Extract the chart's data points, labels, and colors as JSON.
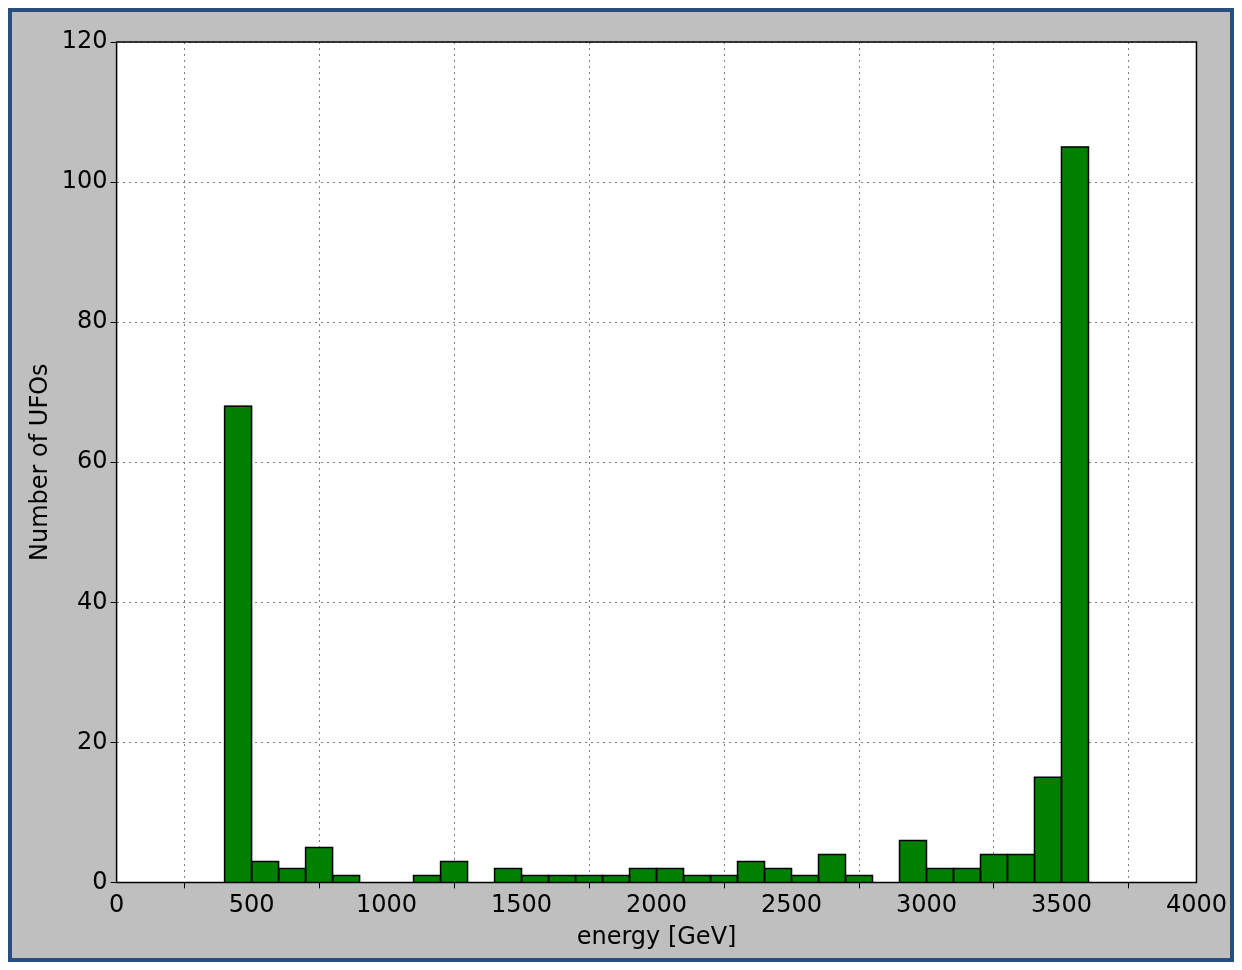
{
  "chart_data": {
    "type": "histogram",
    "xlabel": "energy [GeV]",
    "ylabel": "Number of UFOs",
    "bins": [
      400,
      500,
      600,
      700,
      800,
      900,
      1000,
      1100,
      1200,
      1300,
      1400,
      1500,
      1600,
      1700,
      1800,
      1900,
      2000,
      2100,
      2200,
      2300,
      2400,
      2500,
      2600,
      2700,
      2800,
      2900,
      3000,
      3100,
      3200,
      3300,
      3400,
      3500,
      3600
    ],
    "values": [
      68,
      3,
      2,
      5,
      1,
      0,
      0,
      1,
      3,
      0,
      2,
      1,
      1,
      1,
      1,
      2,
      2,
      1,
      1,
      3,
      2,
      1,
      4,
      1,
      0,
      6,
      2,
      2,
      4,
      4,
      15,
      105
    ],
    "color": "#008000",
    "xlim": [
      0,
      4000
    ],
    "xticks": [
      0,
      500,
      1000,
      1500,
      2000,
      2500,
      3000,
      3500,
      4000
    ],
    "ylim": [
      0,
      120
    ],
    "yticks": [
      0,
      20,
      40,
      60,
      80,
      100,
      120
    ],
    "grid": true,
    "legend": false
  }
}
